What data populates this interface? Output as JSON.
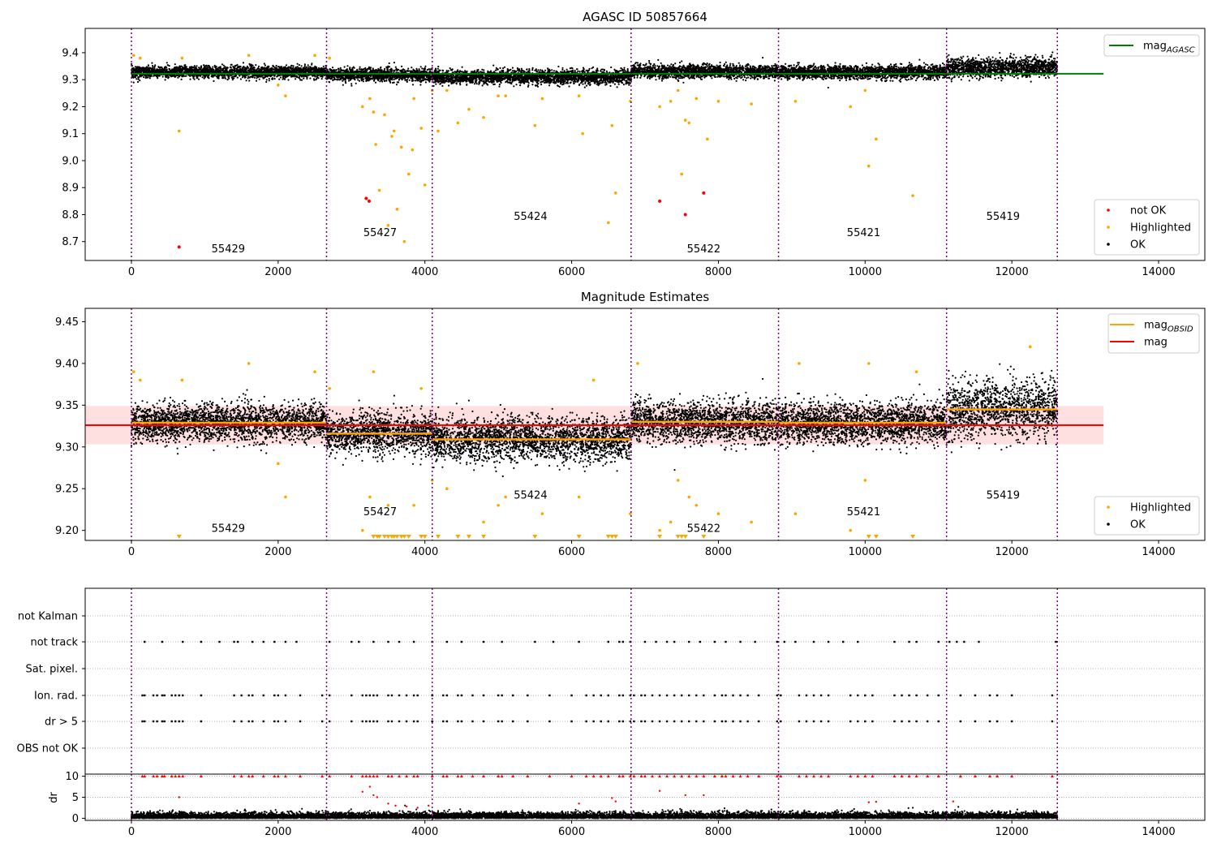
{
  "chart_data": [
    {
      "type": "scatter",
      "title": "AGASC ID 50857664",
      "xlabel": "",
      "ylabel": "",
      "xlim": [
        -630,
        14630
      ],
      "ylim": [
        8.63,
        9.49
      ],
      "xticks": [
        "0",
        "2000",
        "4000",
        "6000",
        "8000",
        "10000",
        "12000",
        "14000"
      ],
      "yticks": [
        "8.7",
        "8.8",
        "8.9",
        "9.0",
        "9.1",
        "9.2",
        "9.3",
        "9.4"
      ],
      "reference_line": {
        "name": "mag_AGASC",
        "y": 9.322,
        "x_range": [
          0,
          13250
        ],
        "color": "#008000"
      },
      "legend": [
        {
          "label": "mag",
          "sub": "AGASC",
          "color": "#008000",
          "marker": "line"
        }
      ],
      "legend2": [
        {
          "label": "not OK",
          "color": "#ff0000",
          "marker": "dot"
        },
        {
          "label": "Highlighted",
          "color": "#ffa500",
          "marker": "dot"
        },
        {
          "label": "OK",
          "color": "#000000",
          "marker": "dot"
        }
      ],
      "obs_boundaries": [
        0,
        2660,
        4100,
        6810,
        8820,
        11110,
        12620
      ],
      "obs_labels": [
        {
          "text": "55429",
          "x": 1320,
          "y": 8.66
        },
        {
          "text": "55427",
          "x": 3390,
          "y": 8.72
        },
        {
          "text": "55424",
          "x": 5440,
          "y": 8.78
        },
        {
          "text": "55422",
          "x": 7800,
          "y": 8.66
        },
        {
          "text": "55421",
          "x": 9980,
          "y": 8.72
        },
        {
          "text": "55419",
          "x": 11880,
          "y": 8.78
        }
      ],
      "ok_bands": [
        {
          "x": [
            0,
            2660
          ],
          "center": 9.328,
          "spread": 0.022
        },
        {
          "x": [
            2660,
            4100
          ],
          "center": 9.318,
          "spread": 0.024
        },
        {
          "x": [
            4100,
            6810
          ],
          "center": 9.31,
          "spread": 0.026
        },
        {
          "x": [
            6810,
            8820
          ],
          "center": 9.33,
          "spread": 0.024
        },
        {
          "x": [
            8820,
            11110
          ],
          "center": 9.328,
          "spread": 0.024
        },
        {
          "x": [
            11110,
            12620
          ],
          "center": 9.345,
          "spread": 0.034
        }
      ],
      "highlighted_points": [
        [
          30,
          9.39
        ],
        [
          120,
          9.38
        ],
        [
          650,
          9.11
        ],
        [
          690,
          9.38
        ],
        [
          1600,
          9.39
        ],
        [
          2000,
          9.28
        ],
        [
          2100,
          9.24
        ],
        [
          2500,
          9.39
        ],
        [
          2700,
          9.38
        ],
        [
          3150,
          9.2
        ],
        [
          3250,
          9.23
        ],
        [
          3300,
          9.18
        ],
        [
          3330,
          9.06
        ],
        [
          3380,
          8.89
        ],
        [
          3450,
          9.17
        ],
        [
          3500,
          8.76
        ],
        [
          3550,
          9.09
        ],
        [
          3580,
          9.11
        ],
        [
          3620,
          8.82
        ],
        [
          3680,
          9.05
        ],
        [
          3720,
          8.7
        ],
        [
          3780,
          8.95
        ],
        [
          3830,
          9.04
        ],
        [
          3850,
          9.23
        ],
        [
          3950,
          9.12
        ],
        [
          4000,
          8.91
        ],
        [
          4100,
          9.26
        ],
        [
          4180,
          9.11
        ],
        [
          4300,
          9.26
        ],
        [
          4450,
          9.14
        ],
        [
          4600,
          9.19
        ],
        [
          4800,
          9.16
        ],
        [
          5000,
          9.24
        ],
        [
          5100,
          9.24
        ],
        [
          5500,
          9.13
        ],
        [
          5600,
          9.23
        ],
        [
          6100,
          9.24
        ],
        [
          6150,
          9.1
        ],
        [
          6500,
          8.77
        ],
        [
          6550,
          9.13
        ],
        [
          6600,
          8.88
        ],
        [
          6800,
          9.22
        ],
        [
          7200,
          9.2
        ],
        [
          7350,
          9.22
        ],
        [
          7450,
          9.26
        ],
        [
          7500,
          8.95
        ],
        [
          7550,
          9.15
        ],
        [
          7600,
          9.14
        ],
        [
          7700,
          9.23
        ],
        [
          7850,
          9.08
        ],
        [
          8000,
          9.22
        ],
        [
          8450,
          9.21
        ],
        [
          9050,
          9.22
        ],
        [
          9800,
          9.2
        ],
        [
          10050,
          8.98
        ],
        [
          10150,
          9.08
        ],
        [
          10650,
          8.87
        ],
        [
          10000,
          9.26
        ]
      ],
      "notok_points": [
        [
          650,
          8.68
        ],
        [
          3200,
          8.86
        ],
        [
          3240,
          8.85
        ],
        [
          7200,
          8.85
        ],
        [
          7550,
          8.8
        ],
        [
          7800,
          8.88
        ]
      ]
    },
    {
      "type": "scatter",
      "title": "Magnitude Estimates",
      "xlabel": "",
      "ylabel": "",
      "xlim": [
        -630,
        14630
      ],
      "ylim": [
        9.188,
        9.466
      ],
      "xticks": [
        "0",
        "2000",
        "4000",
        "6000",
        "8000",
        "10000",
        "12000",
        "14000"
      ],
      "yticks": [
        "9.20",
        "9.25",
        "9.30",
        "9.35",
        "9.40",
        "9.45"
      ],
      "mag_line": {
        "name": "mag",
        "y": 9.326,
        "x_range": [
          -630,
          13250
        ],
        "color": "#ff0000"
      },
      "mag_band": {
        "low": 9.303,
        "high": 9.349,
        "color": "#ffcccc"
      },
      "obsid_mags": [
        {
          "x": [
            0,
            2660
          ],
          "y": 9.329
        },
        {
          "x": [
            2660,
            4100
          ],
          "y": 9.316
        },
        {
          "x": [
            4100,
            6810
          ],
          "y": 9.309
        },
        {
          "x": [
            6810,
            8820
          ],
          "y": 9.33
        },
        {
          "x": [
            8820,
            11110
          ],
          "y": 9.329
        },
        {
          "x": [
            11110,
            12620
          ],
          "y": 9.345
        }
      ],
      "legend": [
        {
          "label": "mag",
          "sub": "OBSID",
          "color": "#ffa500",
          "marker": "line"
        },
        {
          "label": "mag",
          "sub": "",
          "color": "#ff0000",
          "marker": "line"
        }
      ],
      "legend2": [
        {
          "label": "Highlighted",
          "color": "#ffa500",
          "marker": "dot"
        },
        {
          "label": "OK",
          "color": "#000000",
          "marker": "dot"
        }
      ],
      "obs_labels": [
        {
          "text": "55429",
          "x": 1320,
          "y": 9.198
        },
        {
          "text": "55427",
          "x": 3390,
          "y": 9.218
        },
        {
          "text": "55424",
          "x": 5440,
          "y": 9.238
        },
        {
          "text": "55422",
          "x": 7800,
          "y": 9.198
        },
        {
          "text": "55421",
          "x": 9980,
          "y": 9.218
        },
        {
          "text": "55419",
          "x": 11880,
          "y": 9.238
        }
      ],
      "offscale_markers_x": [
        650,
        3300,
        3350,
        3380,
        3450,
        3500,
        3550,
        3580,
        3620,
        3680,
        3720,
        3780,
        3950,
        4000,
        4180,
        4450,
        4600,
        4800,
        5500,
        6100,
        6500,
        6550,
        6600,
        7200,
        7450,
        7500,
        7550,
        7800,
        10050,
        10150,
        10650
      ],
      "highlighted_points": [
        [
          30,
          9.39
        ],
        [
          120,
          9.38
        ],
        [
          690,
          9.38
        ],
        [
          1600,
          9.4
        ],
        [
          2000,
          9.28
        ],
        [
          2100,
          9.24
        ],
        [
          2500,
          9.39
        ],
        [
          2700,
          9.37
        ],
        [
          3150,
          9.2
        ],
        [
          3250,
          9.24
        ],
        [
          3300,
          9.39
        ],
        [
          3500,
          9.23
        ],
        [
          3850,
          9.23
        ],
        [
          3950,
          9.37
        ],
        [
          4100,
          9.26
        ],
        [
          4300,
          9.25
        ],
        [
          4800,
          9.21
        ],
        [
          5000,
          9.23
        ],
        [
          5100,
          9.24
        ],
        [
          5600,
          9.22
        ],
        [
          6100,
          9.24
        ],
        [
          6300,
          9.38
        ],
        [
          6800,
          9.22
        ],
        [
          6900,
          9.4
        ],
        [
          7200,
          9.2
        ],
        [
          7350,
          9.21
        ],
        [
          7450,
          9.26
        ],
        [
          7600,
          9.24
        ],
        [
          7700,
          9.23
        ],
        [
          8000,
          9.22
        ],
        [
          8450,
          9.21
        ],
        [
          9050,
          9.22
        ],
        [
          9100,
          9.4
        ],
        [
          9800,
          9.2
        ],
        [
          10000,
          9.26
        ],
        [
          10050,
          9.4
        ],
        [
          10700,
          9.39
        ],
        [
          12250,
          9.42
        ]
      ]
    },
    {
      "type": "scatter",
      "title": "",
      "xlabel": "",
      "ylabel": "",
      "xlim": [
        -630,
        14630
      ],
      "yticks": [
        "not Kalman",
        "not track",
        "Sat. pixel.",
        "Ion. rad.",
        "dr > 5",
        "OBS not OK"
      ],
      "flag_rows": [
        "not Kalman",
        "not track",
        "Sat. pixel.",
        "Ion. rad.",
        "dr > 5",
        "OBS not OK"
      ],
      "flag_points": {
        "not track": [
          180,
          420,
          700,
          950,
          1200,
          1400,
          1450,
          1650,
          1800,
          1950,
          2100,
          2250,
          2700,
          3000,
          3100,
          3300,
          3500,
          3650,
          3850,
          4100,
          4300,
          4500,
          4800,
          5050,
          5500,
          5750,
          6100,
          6500,
          6650,
          6700,
          6800,
          7000,
          7150,
          7300,
          7400,
          7600,
          7750,
          7950,
          8100,
          8300,
          8500,
          8800,
          8900,
          9050,
          9300,
          9500,
          9700,
          9900,
          10400,
          10600,
          10700,
          11000,
          11150,
          11250,
          11350,
          11550,
          12600
        ],
        "Ion. rad.": [
          150,
          180,
          300,
          350,
          420,
          450,
          550,
          600,
          650,
          700,
          950,
          1400,
          1500,
          1600,
          1650,
          1800,
          1950,
          2000,
          2100,
          2300,
          2600,
          2700,
          3000,
          3150,
          3200,
          3250,
          3300,
          3350,
          3500,
          3550,
          3650,
          3750,
          3850,
          3900,
          4100,
          4250,
          4300,
          4450,
          4500,
          4650,
          4800,
          5000,
          5050,
          5200,
          5400,
          5700,
          6000,
          6200,
          6300,
          6400,
          6500,
          6650,
          6700,
          6800,
          6850,
          6950,
          7000,
          7100,
          7200,
          7300,
          7400,
          7500,
          7600,
          7700,
          7800,
          7950,
          8050,
          8100,
          8200,
          8300,
          8400,
          8550,
          8800,
          8850,
          9100,
          9200,
          9300,
          9400,
          9500,
          9800,
          9900,
          10000,
          10100,
          10400,
          10500,
          10600,
          10700,
          10850,
          11000,
          11300,
          11500,
          11700,
          11800,
          12000,
          12550
        ],
        "dr > 5": [
          150,
          180,
          300,
          350,
          420,
          450,
          550,
          600,
          650,
          700,
          950,
          1400,
          1500,
          1600,
          1650,
          1800,
          1950,
          2000,
          2100,
          2300,
          2600,
          2700,
          3000,
          3150,
          3200,
          3250,
          3300,
          3350,
          3500,
          3550,
          3650,
          3750,
          3850,
          3900,
          4100,
          4250,
          4300,
          4450,
          4500,
          4650,
          4800,
          5000,
          5050,
          5200,
          5400,
          5700,
          6000,
          6200,
          6300,
          6400,
          6500,
          6650,
          6700,
          6800,
          6850,
          6950,
          7000,
          7100,
          7200,
          7300,
          7400,
          7500,
          7600,
          7700,
          7800,
          7950,
          8050,
          8100,
          8200,
          8300,
          8400,
          8550,
          8800,
          8850,
          9100,
          9200,
          9300,
          9400,
          9500,
          9800,
          9900,
          10000,
          10100,
          10400,
          10500,
          10600,
          10700,
          10850,
          11000,
          11300,
          11500,
          11700,
          11800,
          12000,
          12550
        ]
      }
    },
    {
      "type": "scatter",
      "title": "",
      "xlabel": "",
      "ylabel": "dr",
      "xlim": [
        -630,
        14630
      ],
      "ylim": [
        -0.5,
        10.5
      ],
      "xticks": [
        "0",
        "2000",
        "4000",
        "6000",
        "8000",
        "10000",
        "12000",
        "14000"
      ],
      "yticks": [
        "0",
        "5",
        "10"
      ],
      "dr_ok_band": {
        "x": [
          0,
          12620
        ],
        "low": 0.0,
        "high": 1.4
      },
      "dr_capped_x": [
        150,
        180,
        300,
        350,
        420,
        450,
        550,
        600,
        650,
        700,
        950,
        1400,
        1500,
        1600,
        1650,
        1800,
        1950,
        2000,
        2100,
        2300,
        2600,
        2700,
        3000,
        3150,
        3200,
        3250,
        3300,
        3350,
        3500,
        3550,
        3650,
        3750,
        3850,
        3900,
        4100,
        4250,
        4300,
        4450,
        4500,
        4650,
        4800,
        5000,
        5050,
        5200,
        5400,
        5700,
        6000,
        6200,
        6300,
        6400,
        6500,
        6650,
        6700,
        6800,
        6850,
        6950,
        7000,
        7100,
        7200,
        7300,
        7400,
        7500,
        7600,
        7700,
        7800,
        7950,
        8050,
        8100,
        8200,
        8300,
        8400,
        8550,
        8800,
        8850,
        9100,
        9200,
        9300,
        9400,
        9500,
        9800,
        9900,
        10000,
        10100,
        10400,
        10500,
        10600,
        10700,
        10850,
        11000,
        11300,
        11500,
        11700,
        11800,
        12000,
        12550
      ],
      "dr_points": [
        [
          650,
          5.0
        ],
        [
          3150,
          6.3
        ],
        [
          3250,
          7.5
        ],
        [
          3300,
          5.5
        ],
        [
          3350,
          5.0
        ],
        [
          3500,
          3.5
        ],
        [
          3600,
          3.0
        ],
        [
          3750,
          2.8
        ],
        [
          3900,
          2.5
        ],
        [
          4050,
          3.0
        ],
        [
          6100,
          3.5
        ],
        [
          6550,
          4.8
        ],
        [
          6600,
          4.0
        ],
        [
          7200,
          6.5
        ],
        [
          7550,
          5.5
        ],
        [
          7800,
          5.5
        ],
        [
          10050,
          3.8
        ],
        [
          10150,
          3.9
        ],
        [
          11200,
          4.0
        ],
        [
          12620,
          8.5
        ]
      ],
      "dr_ok_outliers": [
        [
          7500,
          2.0
        ],
        [
          7550,
          1.5
        ],
        [
          9850,
          2.2
        ],
        [
          10650,
          2.5
        ],
        [
          3250,
          1.8
        ],
        [
          4100,
          1.7
        ]
      ]
    }
  ]
}
